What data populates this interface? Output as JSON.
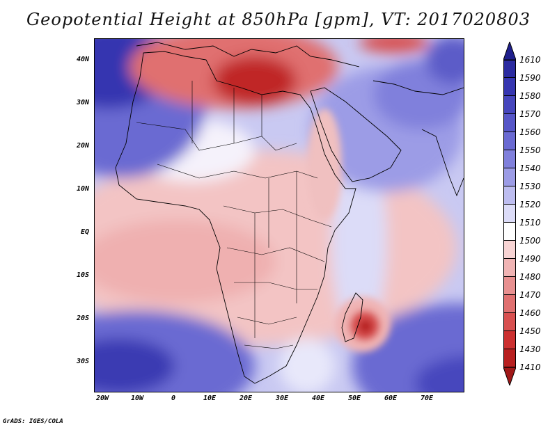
{
  "title": "Geopotential Height at 850hPa [gpm], VT: 2017020803",
  "credit": "GrADS: IGES/COLA",
  "map": {
    "lat_labels": [
      "40N",
      "30N",
      "20N",
      "10N",
      "EQ",
      "10S",
      "20S",
      "30S"
    ],
    "lon_labels": [
      "20W",
      "10W",
      "0",
      "10E",
      "20E",
      "30E",
      "40E",
      "50E",
      "60E",
      "70E"
    ]
  },
  "colorbar": {
    "labels": [
      "1610",
      "1590",
      "1580",
      "1570",
      "1560",
      "1550",
      "1540",
      "1530",
      "1520",
      "1510",
      "1500",
      "1490",
      "1480",
      "1470",
      "1460",
      "1450",
      "1430",
      "1410"
    ],
    "colors": {
      "max_arrow": "#1f1f8c",
      "c1600": "#2b2ba0",
      "c1585": "#3636b0",
      "c1575": "#4646bd",
      "c1565": "#5656c8",
      "c1555": "#6a6ad2",
      "c1545": "#8080dc",
      "c1535": "#9c9ce6",
      "c1525": "#bdbdf0",
      "c1515": "#dcdcf8",
      "c1505": "#ffffff",
      "c1495": "#f8d4d4",
      "c1485": "#f0b4b4",
      "c1475": "#e89090",
      "c1465": "#e07070",
      "c1455": "#d85050",
      "c1440": "#cc3030",
      "c1420": "#b82020",
      "min_arrow": "#a01818"
    }
  }
}
